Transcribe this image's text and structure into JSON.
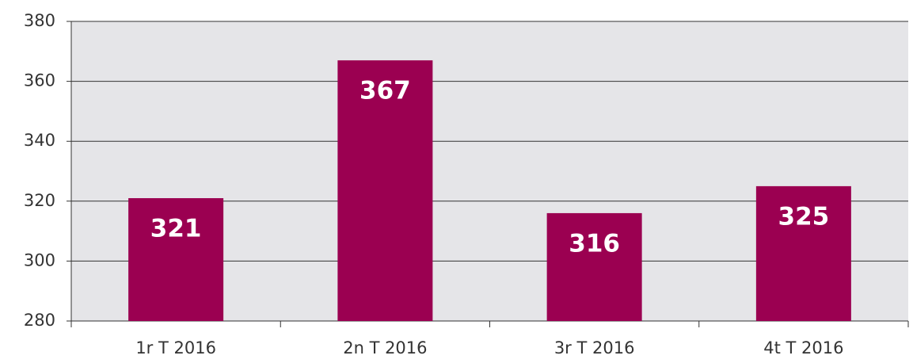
{
  "chart_data": {
    "type": "bar",
    "categories": [
      "1r T 2016",
      "2n T 2016",
      "3r T 2016",
      "4t T 2016"
    ],
    "values": [
      321,
      367,
      316,
      325
    ],
    "color": "#9b0051",
    "ylim": [
      280,
      380
    ],
    "yticks": [
      280,
      300,
      320,
      340,
      360,
      380
    ],
    "grid": true
  }
}
